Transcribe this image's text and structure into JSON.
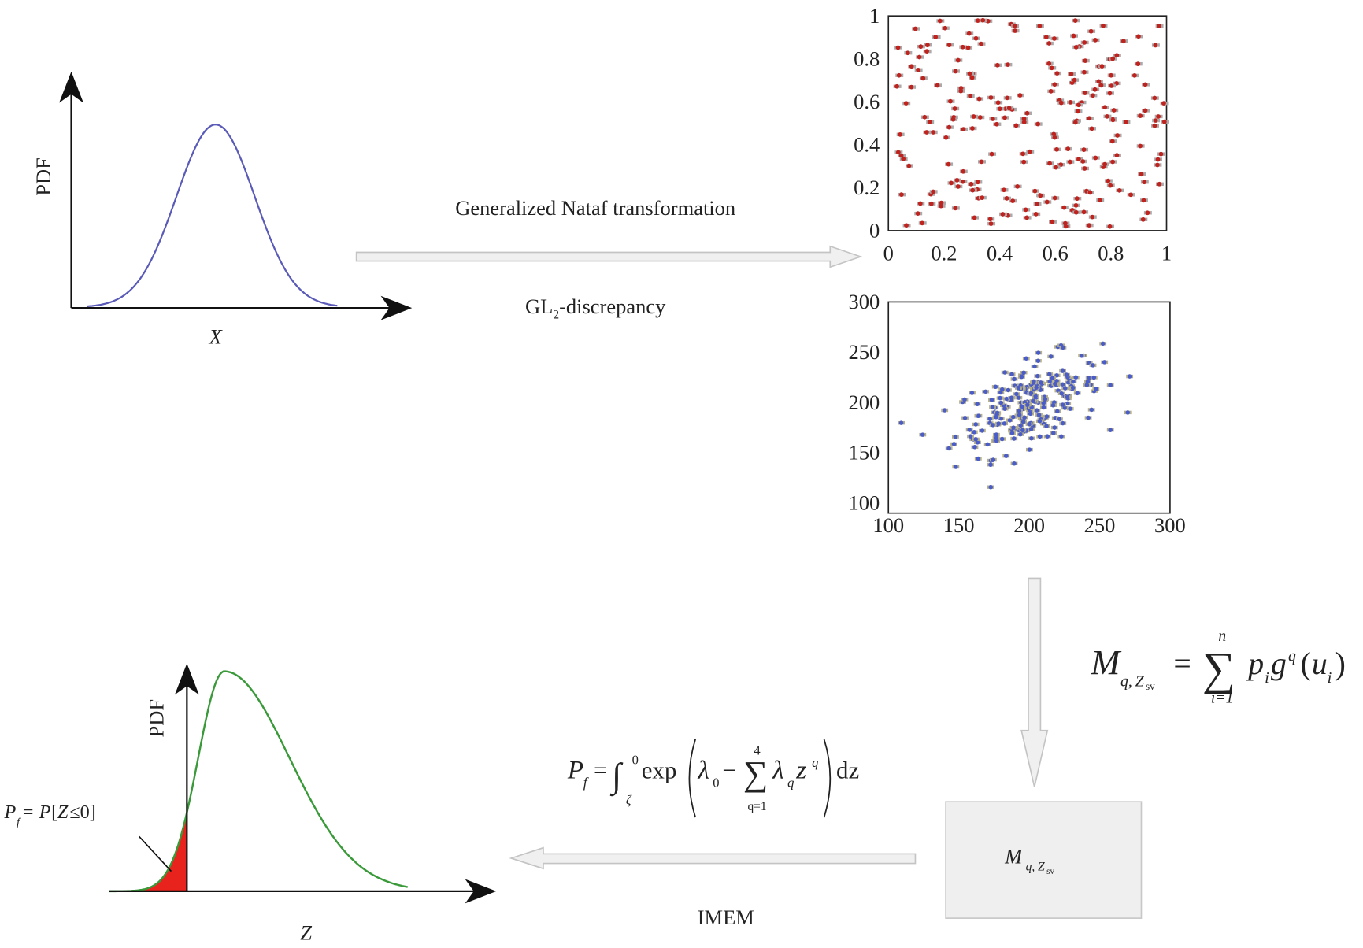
{
  "pdf_input": {
    "y_label": "PDF",
    "x_label": "X"
  },
  "transformation": {
    "label": "Generalized Nataf transformation",
    "discrepancy": {
      "prefix": "GL",
      "subscript": "2",
      "suffix": "-discrepancy"
    }
  },
  "uniform_samples": {
    "y_ticks": [
      "0",
      "0.2",
      "0.4",
      "0.6",
      "0.8",
      "1"
    ],
    "x_ticks": [
      "0",
      "0.2",
      "0.4",
      "0.6",
      "0.8",
      "1"
    ]
  },
  "physical_samples": {
    "y_ticks": [
      "100",
      "150",
      "200",
      "250",
      "300"
    ],
    "x_ticks": [
      "100",
      "150",
      "200",
      "250",
      "300"
    ]
  },
  "moment_formula": {
    "M": "M",
    "sub_q": "q,",
    "sub_Z": "Z",
    "sub_sv": "sv",
    "equals": "=",
    "sum": "∑",
    "upper": "n",
    "lower": "i=1",
    "p": "p",
    "p_sub": "i",
    "g": "g",
    "g_sup": "q",
    "open": "(",
    "u": "u",
    "u_sub": "i",
    "close": ")"
  },
  "moment_box": {
    "M": "M",
    "sub_q": "q,",
    "sub_Z": "Z",
    "sub_sv": "sv"
  },
  "failure_formula": {
    "P": "P",
    "P_sub": "f",
    "equals": "=",
    "integral": "∫",
    "int_upper": "0",
    "int_lower": "ζ",
    "exp": "exp",
    "lambda0": "λ",
    "lambda0_sub": "0",
    "minus": "−",
    "sum": "∑",
    "sum_upper": "4",
    "sum_lower": "q=1",
    "lambda": "λ",
    "lambda_sub": "q",
    "z": "z",
    "z_sup": "q",
    "dz": "dz"
  },
  "method": {
    "label": "IMEM"
  },
  "pdf_output": {
    "y_label": "PDF",
    "x_label": "Z",
    "annotation": {
      "P": "P",
      "P_sub": "f",
      "eq": "= ",
      "P2": "P",
      "open": "[",
      "Z": "Z",
      "rest": "≤0]"
    }
  }
}
